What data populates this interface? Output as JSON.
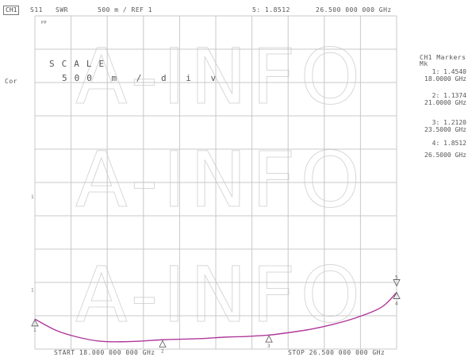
{
  "header": {
    "channel": "CH1",
    "parameter": "S11",
    "format": "SWR",
    "scale_ref": "500 m / REF 1",
    "active_marker": "5: 1.8512",
    "active_freq": "26.500 000 000 GHz"
  },
  "left": {
    "pp": "PP",
    "cor": "Cor",
    "scale_label": "SCALE",
    "scale_value": "500 m / d i v"
  },
  "footer": {
    "start": "START 18.000 000 000 GHz",
    "stop": "STOP 26.500 000 000 GHz"
  },
  "marker_panel": {
    "title": "CH1 Markers",
    "subtitle": "Mk",
    "markers": [
      {
        "label": "1: 1.4540",
        "freq": "18.0000 GHz"
      },
      {
        "label": "2: 1.1374",
        "freq": "21.0000 GHz"
      },
      {
        "label": "3: 1.2120",
        "freq": "23.5000 GHz"
      },
      {
        "label": "4: 1.8512",
        "freq": "26.5000 GHz"
      }
    ]
  },
  "watermark": "A-INFO",
  "colors": {
    "trace": "#b0389a",
    "grid": "#c8c8c8",
    "text": "#555555"
  },
  "chart_data": {
    "type": "line",
    "xlabel": "",
    "ylabel": "",
    "xlim": [
      18.0,
      26.5
    ],
    "ylim": [
      1.0,
      6.0
    ],
    "x": [
      18.0,
      18.5,
      19.0,
      19.5,
      20.0,
      20.5,
      21.0,
      21.5,
      22.0,
      22.5,
      23.0,
      23.5,
      24.0,
      24.5,
      25.0,
      25.5,
      26.0,
      26.25,
      26.5
    ],
    "series": [
      {
        "values": [
          1.45,
          1.28,
          1.18,
          1.12,
          1.11,
          1.12,
          1.14,
          1.15,
          1.16,
          1.18,
          1.19,
          1.21,
          1.25,
          1.3,
          1.37,
          1.46,
          1.58,
          1.68,
          1.85
        ]
      }
    ],
    "markers": [
      {
        "id": "1",
        "x": 18.0,
        "y": 1.454
      },
      {
        "id": "2",
        "x": 21.0,
        "y": 1.1374
      },
      {
        "id": "3",
        "x": 23.5,
        "y": 1.212
      },
      {
        "id": "4",
        "x": 26.5,
        "y": 1.8512
      },
      {
        "id": "5",
        "x": 26.5,
        "y": 1.8512
      }
    ]
  }
}
